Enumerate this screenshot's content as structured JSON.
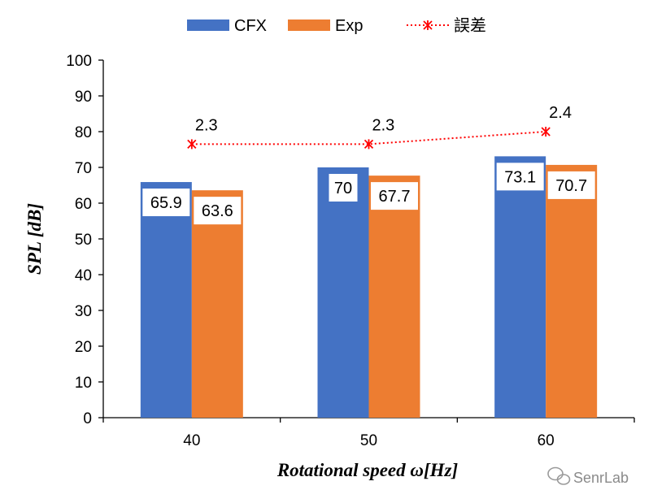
{
  "chart_data": {
    "type": "bar",
    "categories": [
      "40",
      "50",
      "60"
    ],
    "series": [
      {
        "name": "CFX",
        "type": "bar",
        "values": [
          65.9,
          70,
          73.1
        ],
        "color": "#4472C4"
      },
      {
        "name": "Exp",
        "type": "bar",
        "values": [
          63.6,
          67.7,
          70.7
        ],
        "color": "#ED7D31"
      },
      {
        "name": "誤差",
        "type": "line",
        "values": [
          2.3,
          2.3,
          2.4
        ],
        "plotted_y": [
          76.5,
          76.5,
          80
        ],
        "color": "#FF0000",
        "line_style": "dotted",
        "marker": "x-star"
      }
    ],
    "xlabel": "Rotational speed ω[Hz]",
    "ylabel": "SPL [dB]",
    "ylim": [
      0,
      100
    ],
    "yticks": [
      "0",
      "10",
      "20",
      "30",
      "40",
      "50",
      "60",
      "70",
      "80",
      "90",
      "100"
    ],
    "grid": false,
    "legend_position": "top"
  },
  "watermark": {
    "text": "SenrLab",
    "icon": "wechat-icon"
  }
}
